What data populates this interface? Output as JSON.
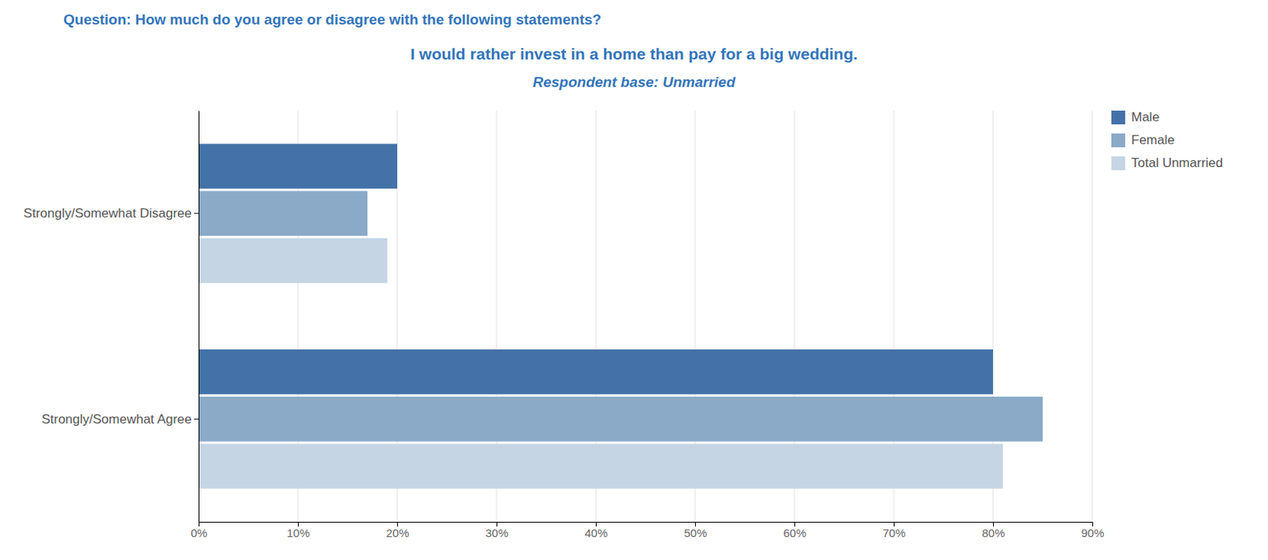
{
  "chart_data": {
    "type": "bar",
    "orientation": "horizontal",
    "title": "Question: How much do you agree or disagree with the following statements?",
    "subtitle": "I would rather invest in a home than pay for a big wedding.",
    "annotations": [
      "Respondent base: Unmarried"
    ],
    "categories": [
      "Strongly/Somewhat Disagree",
      "Strongly/Somewhat Agree"
    ],
    "series": [
      {
        "name": "Male",
        "color": "#4472a8",
        "values": [
          20,
          80
        ]
      },
      {
        "name": "Female",
        "color": "#8aaac8",
        "values": [
          17,
          85
        ]
      },
      {
        "name": "Total Unmarried",
        "color": "#c5d5e4",
        "values": [
          19,
          81
        ]
      }
    ],
    "xlim": [
      0,
      90
    ],
    "xticks": [
      {
        "value": 0,
        "label": "0%"
      },
      {
        "value": 10,
        "label": "10%"
      },
      {
        "value": 20,
        "label": "20%"
      },
      {
        "value": 30,
        "label": "30%"
      },
      {
        "value": 40,
        "label": "40%"
      },
      {
        "value": 50,
        "label": "50%"
      },
      {
        "value": 60,
        "label": "60%"
      },
      {
        "value": 70,
        "label": "70%"
      },
      {
        "value": 80,
        "label": "80%"
      },
      {
        "value": 90,
        "label": "90%"
      }
    ],
    "grid": true,
    "legend": "right"
  }
}
